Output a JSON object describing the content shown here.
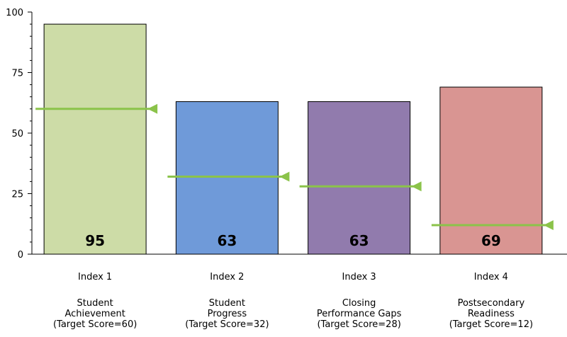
{
  "chart_data": {
    "type": "bar",
    "title": "",
    "xlabel": "",
    "ylabel": "",
    "ylim": [
      0,
      100
    ],
    "yticks": [
      "0",
      "25",
      "50",
      "75",
      "100"
    ],
    "grid": false,
    "categories": [
      {
        "index_label": "Index 1",
        "name_lines": [
          "Student",
          "Achievement"
        ],
        "target_label": "(Target Score=60)"
      },
      {
        "index_label": "Index 2",
        "name_lines": [
          "Student",
          "Progress"
        ],
        "target_label": "(Target Score=32)"
      },
      {
        "index_label": "Index 3",
        "name_lines": [
          "Closing",
          "Performance Gaps"
        ],
        "target_label": "(Target Score=28)"
      },
      {
        "index_label": "Index 4",
        "name_lines": [
          "Postsecondary",
          "Readiness"
        ],
        "target_label": "(Target Score=12)"
      }
    ],
    "values": [
      95,
      63,
      63,
      69
    ],
    "value_labels": [
      "95",
      "63",
      "63",
      "69"
    ],
    "targets": [
      60,
      32,
      28,
      12
    ],
    "colors": [
      "#cddca7",
      "#6f9ad9",
      "#917bad",
      "#d99592"
    ],
    "target_color": "#8bc34a"
  }
}
